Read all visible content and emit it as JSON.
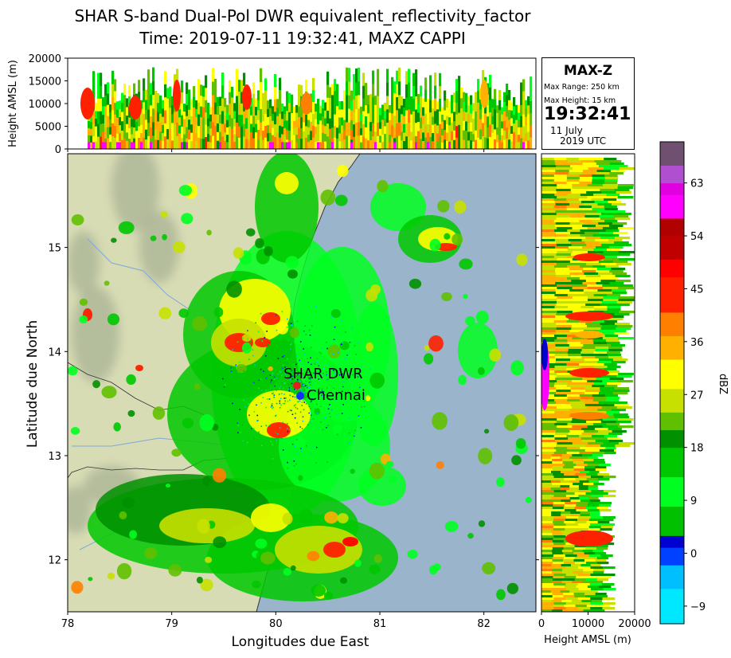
{
  "title_line1": "SHAR S-band Dual-Pol DWR equivalent_reflectivity_factor",
  "title_line2": "Time: 2019-07-11 19:32:41, MAXZ CAPPI",
  "info_box": {
    "heading": "MAX-Z",
    "max_range": "Max Range: 250 km",
    "max_height": "Max Height: 15 km",
    "time": "19:32:41",
    "date_line1": "11 July",
    "date_line2": "2019 UTC"
  },
  "labels": {
    "station": "SHAR DWR",
    "city": "Chennai"
  },
  "colors": {
    "sea": "#9ab4cc",
    "land": "#d8dcb4",
    "hills": "#a8b294",
    "coast": "#333333",
    "station_marker": "#e02020",
    "city_marker": "#1030ff"
  },
  "chart_data": {
    "type": "heatmap",
    "panels": [
      {
        "name": "plan-view",
        "xlabel": "Longitudes due East",
        "ylabel": "Latitude due North",
        "xlim": [
          78,
          82.5
        ],
        "ylim": [
          11.5,
          15.9
        ],
        "xticks": [
          "78",
          "79",
          "80",
          "81",
          "82"
        ],
        "yticks": [
          "12",
          "13",
          "14",
          "15"
        ],
        "station": {
          "lon": 80.2,
          "lat": 13.67
        },
        "city": {
          "lon": 80.23,
          "lat": 13.55
        }
      },
      {
        "name": "longitude-height",
        "ylabel": "Height AMSL (m)",
        "ylim": [
          0,
          20000
        ],
        "yticks": [
          "0",
          "5000",
          "10000",
          "15000",
          "20000"
        ]
      },
      {
        "name": "latitude-height",
        "xlabel": "Height AMSL (m)",
        "xlim": [
          0,
          20000
        ],
        "xticks": [
          "0",
          "10000",
          "20000"
        ]
      }
    ],
    "colorbar": {
      "label": "dBZ",
      "range": [
        -12,
        70
      ],
      "ticks": [
        "-9",
        "0",
        "9",
        "18",
        "27",
        "36",
        "45",
        "54",
        "63"
      ],
      "stops": [
        {
          "v": -12,
          "c": "#00e8ff"
        },
        {
          "v": -6,
          "c": "#00bfff"
        },
        {
          "v": -2,
          "c": "#0040ff"
        },
        {
          "v": 1,
          "c": "#0000d0"
        },
        {
          "v": 3,
          "c": "#00c000"
        },
        {
          "v": 8,
          "c": "#00ff20"
        },
        {
          "v": 13,
          "c": "#00c800"
        },
        {
          "v": 18,
          "c": "#009000"
        },
        {
          "v": 21,
          "c": "#60c000"
        },
        {
          "v": 24,
          "c": "#c8e000"
        },
        {
          "v": 28,
          "c": "#ffff00"
        },
        {
          "v": 33,
          "c": "#ffb000"
        },
        {
          "v": 37,
          "c": "#ff8000"
        },
        {
          "v": 41,
          "c": "#ff2000"
        },
        {
          "v": 47,
          "c": "#ff0000"
        },
        {
          "v": 50,
          "c": "#c00000"
        },
        {
          "v": 54,
          "c": "#b00000"
        },
        {
          "v": 57,
          "c": "#ff00ff"
        },
        {
          "v": 61,
          "c": "#e000e0"
        },
        {
          "v": 63,
          "c": "#b050d0"
        },
        {
          "v": 66,
          "c": "#705070"
        },
        {
          "v": 70,
          "c": "#101010"
        }
      ]
    }
  }
}
